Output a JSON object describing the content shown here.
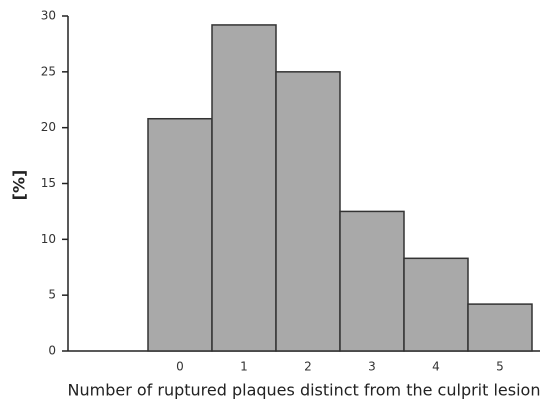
{
  "chart_data": {
    "type": "bar",
    "x_label": "Number of ruptured plaques distinct from the culprit lesion",
    "y_label": "[%]",
    "categories": [
      "0",
      "1",
      "2",
      "3",
      "4",
      "5"
    ],
    "values": [
      20.8,
      29.2,
      25,
      12.5,
      8.3,
      4.2
    ],
    "color": "#a9a9a9",
    "ylim": [
      0,
      30
    ],
    "yticks": [
      0,
      5,
      10,
      15,
      20,
      25,
      30
    ],
    "grid": false
  }
}
